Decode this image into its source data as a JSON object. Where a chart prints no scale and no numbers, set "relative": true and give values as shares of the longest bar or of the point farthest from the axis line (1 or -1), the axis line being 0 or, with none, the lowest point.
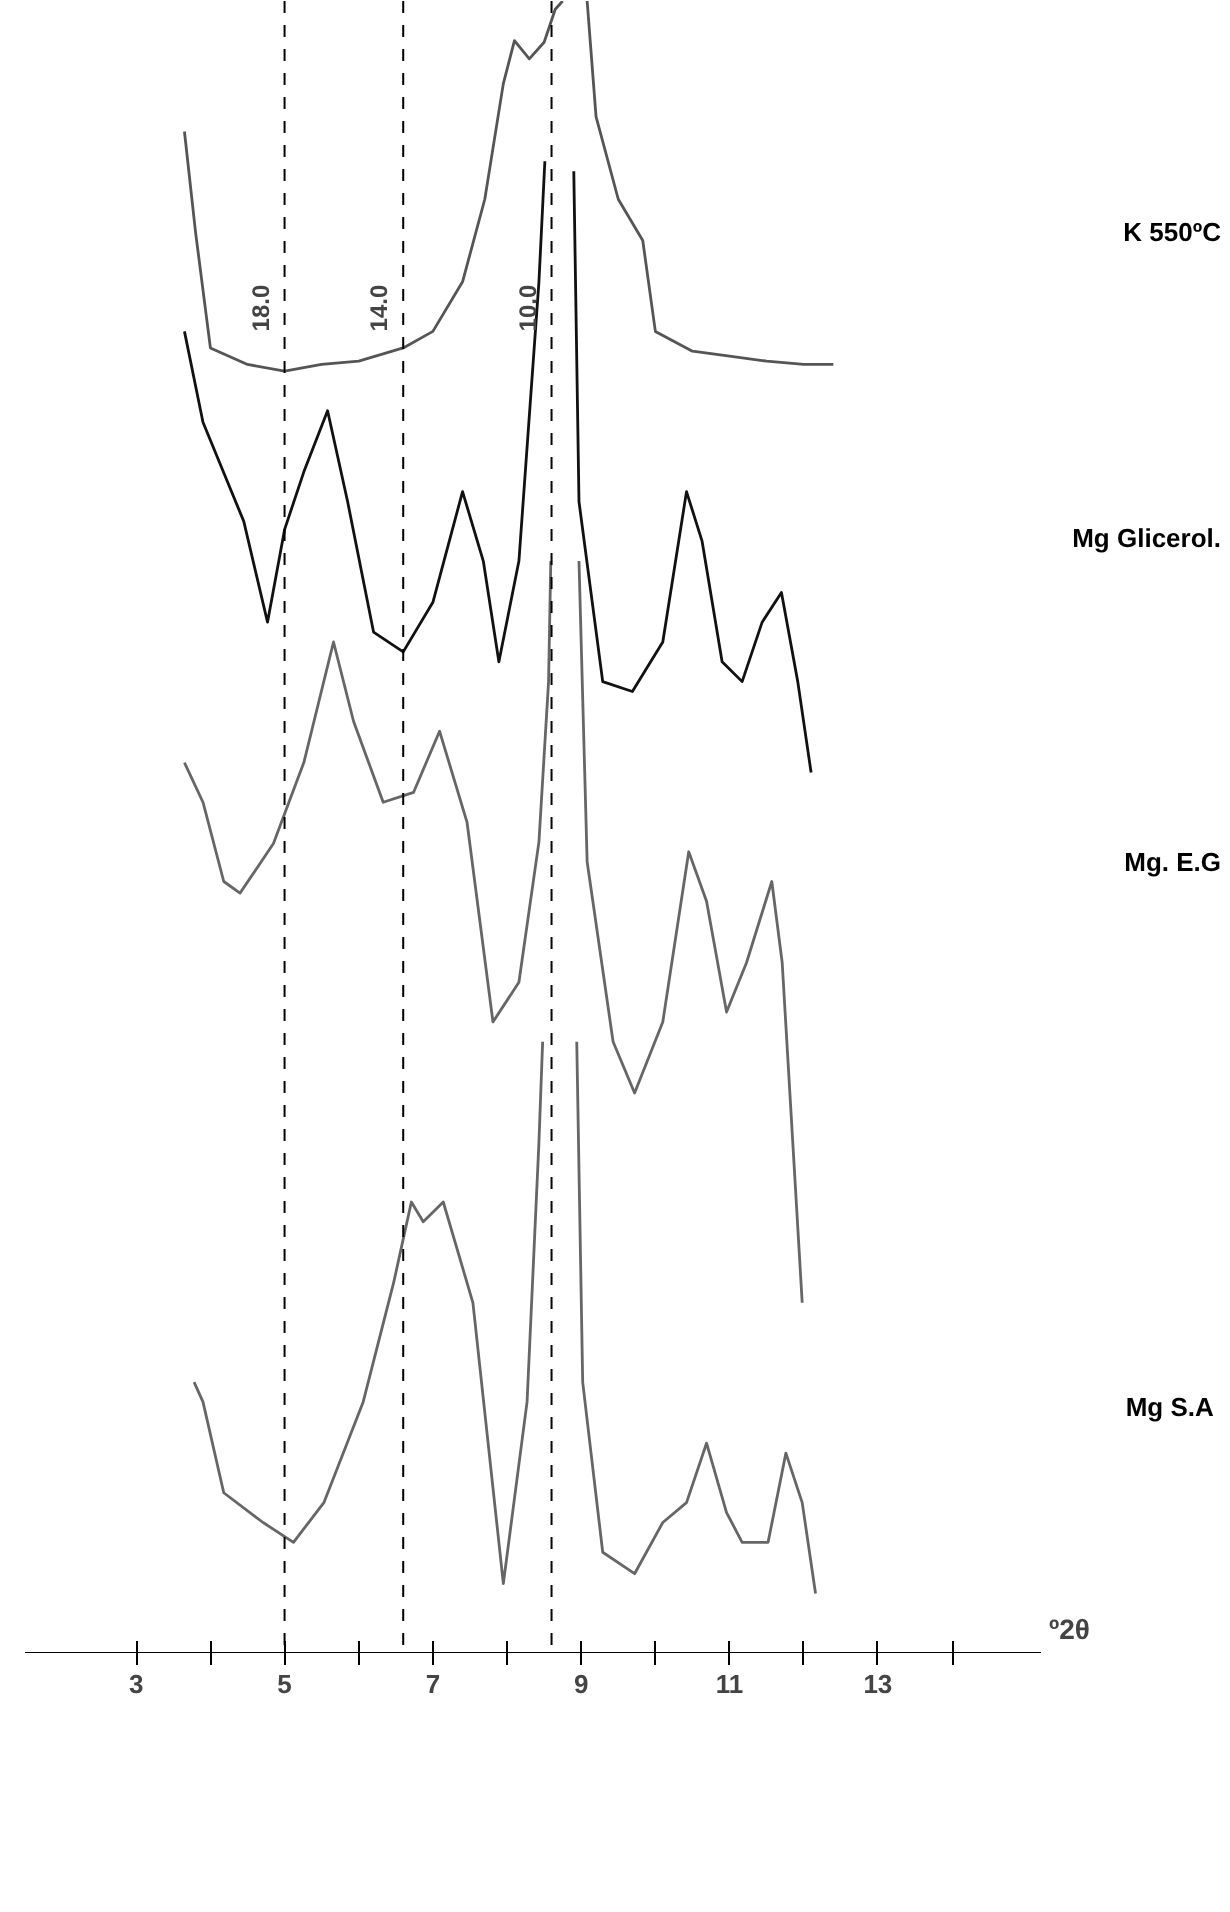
{
  "chart_data": {
    "type": "line",
    "relative": true,
    "xlabel": "º2θ",
    "xlim": [
      1.5,
      15.2
    ],
    "xticks": [
      3,
      {
        "value": 4,
        "label": null
      },
      5,
      {
        "value": 6,
        "label": null
      },
      7,
      {
        "value": 8,
        "label": null
      },
      9,
      {
        "value": 10,
        "label": null
      },
      11,
      {
        "value": 12,
        "label": null
      },
      13,
      {
        "value": 14,
        "label": null
      }
    ],
    "grid": false,
    "marker": "none",
    "line_style": "solid",
    "ref_lines": [
      {
        "axis": "x",
        "value": 5.0,
        "line_style": "dashed"
      },
      {
        "axis": "x",
        "value": 6.6,
        "line_style": "dashed"
      },
      {
        "axis": "x",
        "value": 8.6,
        "line_style": "dashed"
      }
    ],
    "annotations": [
      {
        "text": "18.0",
        "x": 5.0,
        "y": 0.8
      },
      {
        "text": "14.0",
        "x": 6.6,
        "y": 0.8
      },
      {
        "text": "10.0",
        "x": 8.6,
        "y": 0.8
      }
    ],
    "series": [
      {
        "name": "K 550ºC",
        "color": "#555555",
        "x": [
          3.65,
          3.8,
          4.0,
          4.5,
          5.0,
          5.5,
          6.0,
          6.6,
          7.0,
          7.4,
          7.7,
          7.95,
          8.1,
          8.3,
          8.5,
          8.65,
          8.75,
          8.9,
          9.08,
          9.2,
          9.5,
          9.83,
          10.0,
          10.5,
          11.0,
          11.5,
          12.0,
          12.4
        ],
        "values": [
          0.921,
          0.86,
          0.79,
          0.78,
          0.776,
          0.78,
          0.782,
          0.79,
          0.8,
          0.83,
          0.88,
          0.95,
          0.976,
          0.965,
          0.975,
          0.995,
          1.0,
          null,
          1.0,
          0.93,
          0.88,
          0.855,
          0.8,
          0.788,
          0.785,
          0.782,
          0.78,
          0.78
        ]
      },
      {
        "name": "Mg Glicerol.",
        "color": "#111111",
        "x": [
          3.65,
          3.9,
          4.45,
          4.77,
          5.0,
          5.26,
          5.58,
          5.85,
          6.2,
          6.6,
          7.0,
          7.4,
          7.68,
          7.89,
          8.16,
          8.43,
          8.51,
          8.7,
          8.9,
          8.97,
          9.29,
          9.69,
          10.1,
          10.42,
          10.63,
          10.9,
          11.17,
          11.44,
          11.7,
          11.92,
          12.1
        ],
        "values": [
          0.8,
          0.745,
          0.685,
          0.624,
          0.68,
          0.715,
          0.752,
          0.697,
          0.618,
          0.606,
          0.636,
          0.703,
          0.661,
          0.6,
          0.661,
          0.83,
          0.903,
          null,
          0.897,
          0.697,
          0.588,
          0.582,
          0.612,
          0.703,
          0.673,
          0.6,
          0.588,
          0.624,
          0.642,
          0.588,
          0.533
        ]
      },
      {
        "name": "Mg. E.G",
        "color": "#666666",
        "x": [
          3.65,
          3.9,
          4.18,
          4.4,
          4.85,
          5.26,
          5.66,
          5.93,
          6.33,
          6.74,
          7.09,
          7.46,
          7.81,
          8.16,
          8.43,
          8.56,
          8.59,
          8.8,
          8.97,
          9.08,
          9.43,
          9.72,
          10.1,
          10.45,
          10.69,
          10.96,
          11.23,
          11.57,
          11.71,
          11.98
        ],
        "values": [
          0.539,
          0.515,
          0.467,
          0.46,
          0.49,
          0.539,
          0.612,
          0.564,
          0.515,
          0.521,
          0.558,
          0.503,
          0.382,
          0.406,
          0.491,
          0.588,
          0.661,
          null,
          0.661,
          0.479,
          0.37,
          0.339,
          0.382,
          0.485,
          0.455,
          0.388,
          0.418,
          0.467,
          0.418,
          0.212
        ]
      },
      {
        "name": "Mg  S.A",
        "color": "#666666",
        "x": [
          3.78,
          3.9,
          4.18,
          4.71,
          5.12,
          5.53,
          6.06,
          6.47,
          6.71,
          6.87,
          7.14,
          7.54,
          7.95,
          8.27,
          8.43,
          8.48,
          8.7,
          8.94,
          9.02,
          9.29,
          9.72,
          10.1,
          10.42,
          10.69,
          10.96,
          11.17,
          11.52,
          11.76,
          11.98,
          12.16
        ],
        "values": [
          0.164,
          0.152,
          0.097,
          0.079,
          0.067,
          0.091,
          0.152,
          0.224,
          0.273,
          0.261,
          0.273,
          0.212,
          0.042,
          0.152,
          0.309,
          0.37,
          null,
          0.37,
          0.164,
          0.061,
          0.048,
          0.079,
          0.091,
          0.127,
          0.085,
          0.067,
          0.067,
          0.121,
          0.091,
          0.036
        ]
      }
    ]
  }
}
